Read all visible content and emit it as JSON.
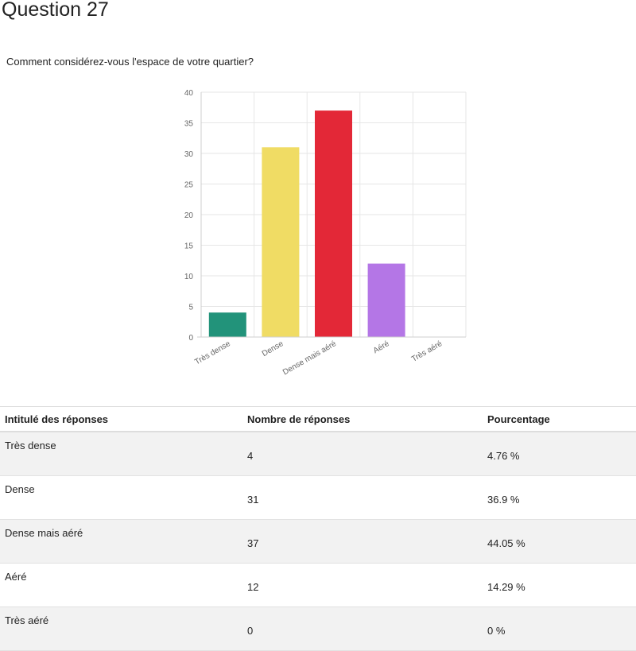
{
  "page": {
    "title": "Question 27",
    "question": "Comment considérez-vous l'espace de votre quartier?"
  },
  "chart_data": {
    "type": "bar",
    "title": "",
    "xlabel": "",
    "ylabel": "",
    "categories": [
      "Très dense",
      "Dense",
      "Dense mais aéré",
      "Aéré",
      "Très aéré"
    ],
    "values": [
      4,
      31,
      37,
      12,
      0
    ],
    "colors": [
      "#22937a",
      "#f0dc64",
      "#e32837",
      "#b476e6",
      "#cccccc"
    ],
    "ylim": [
      0,
      40
    ],
    "yticks": [
      0,
      5,
      10,
      15,
      20,
      25,
      30,
      35,
      40
    ],
    "grid": true,
    "legend": "none"
  },
  "table": {
    "headers": [
      "Intitulé des réponses",
      "Nombre de réponses",
      "Pourcentage"
    ],
    "rows": [
      {
        "label": "Très dense",
        "count": "4",
        "percent": "4.76 %"
      },
      {
        "label": "Dense",
        "count": "31",
        "percent": "36.9 %"
      },
      {
        "label": "Dense mais aéré",
        "count": "37",
        "percent": "44.05 %"
      },
      {
        "label": "Aéré",
        "count": "12",
        "percent": "14.29 %"
      },
      {
        "label": "Très aéré",
        "count": "0",
        "percent": "0 %"
      }
    ]
  }
}
